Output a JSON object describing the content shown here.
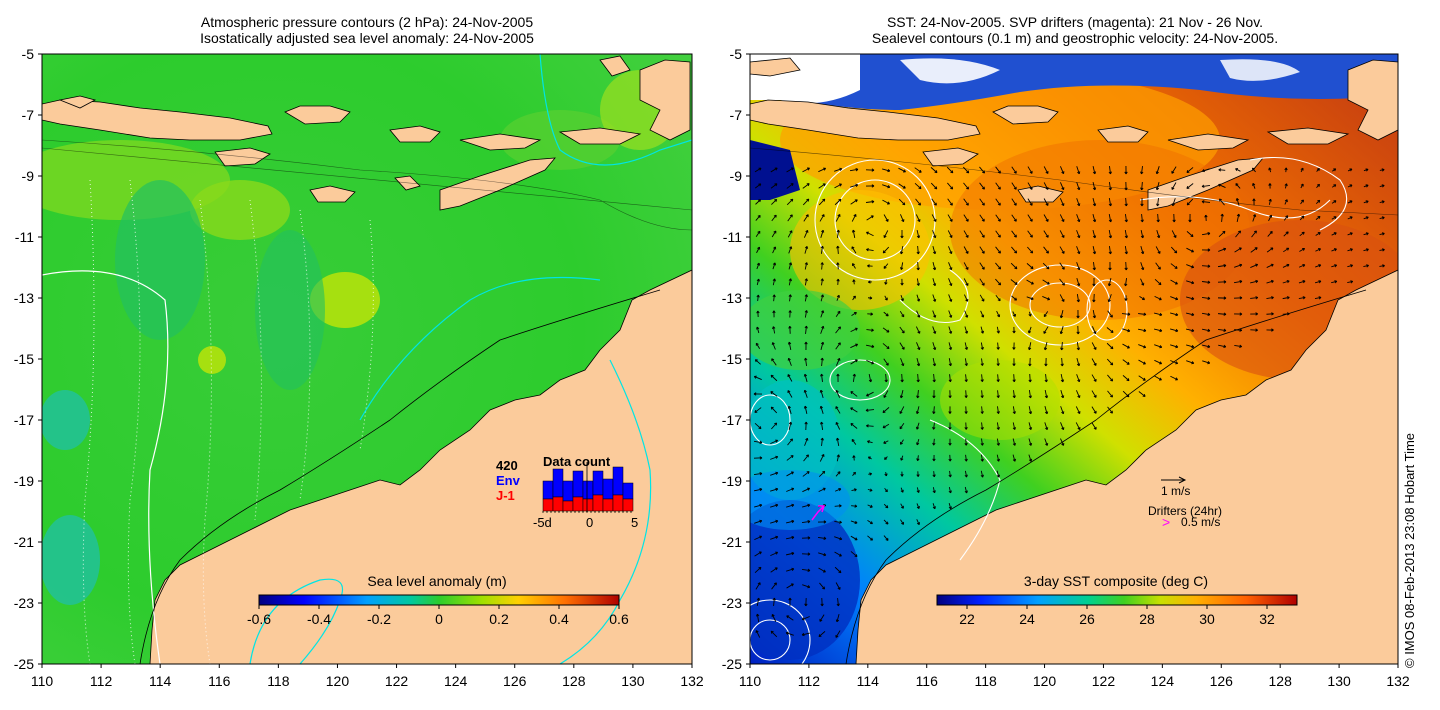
{
  "left_map": {
    "title_line1": "Atmospheric pressure contours (2 hPa): 24-Nov-2005",
    "title_line2": "Isostatically adjusted sea level anomaly: 24-Nov-2005",
    "x_ticks": [
      "110",
      "112",
      "114",
      "116",
      "118",
      "120",
      "122",
      "124",
      "126",
      "128",
      "130",
      "132"
    ],
    "y_ticks": [
      "-5",
      "-7",
      "-9",
      "-11",
      "-13",
      "-15",
      "-17",
      "-19",
      "-21",
      "-23",
      "-25"
    ],
    "lon_range": [
      110,
      132
    ],
    "lat_range": [
      -25,
      -5
    ],
    "colorbar": {
      "title": "Sea level anomaly (m)",
      "ticks": [
        "-0.6",
        "-0.4",
        "-0.2",
        "0",
        "0.2",
        "0.4",
        "0.6"
      ],
      "range": [
        -0.6,
        0.6
      ]
    },
    "data_count": {
      "title": "Data count",
      "total": "420",
      "legend_env": "Env",
      "legend_j1": "J-1",
      "axis_ticks": [
        "-5d",
        "0",
        "5"
      ],
      "env_color": "#0000ff",
      "j1_color": "#ff0000"
    }
  },
  "right_map": {
    "title_line1": "SST: 24-Nov-2005. SVP drifters (magenta): 21 Nov - 26 Nov.",
    "title_line2": "Sealevel contours (0.1 m) and geostrophic velocity: 24-Nov-2005.",
    "x_ticks": [
      "110",
      "112",
      "114",
      "116",
      "118",
      "120",
      "122",
      "124",
      "126",
      "128",
      "130",
      "132"
    ],
    "y_ticks": [
      "-5",
      "-7",
      "-9",
      "-11",
      "-13",
      "-15",
      "-17",
      "-19",
      "-21",
      "-23",
      "-25"
    ],
    "lon_range": [
      110,
      132
    ],
    "lat_range": [
      -25,
      -5
    ],
    "colorbar": {
      "title": "3-day SST composite (deg C)",
      "ticks": [
        "22",
        "24",
        "26",
        "28",
        "30",
        "32"
      ],
      "range": [
        21,
        33
      ]
    },
    "velocity_scale_label": "1 m/s",
    "drifters_label": "Drifters (24hr)",
    "drifter_speed_label": "0.5 m/s",
    "drifter_symbol": ">",
    "drifter_color": "#ff00ff"
  },
  "credit": "© IMOS 08-Feb-2013 23:08 Hobart Time",
  "colors": {
    "land": "#fbcb9b",
    "sea_left": "#2dcc2d",
    "white_contour": "#ffffff",
    "cyan_contour": "#00e5e5"
  }
}
